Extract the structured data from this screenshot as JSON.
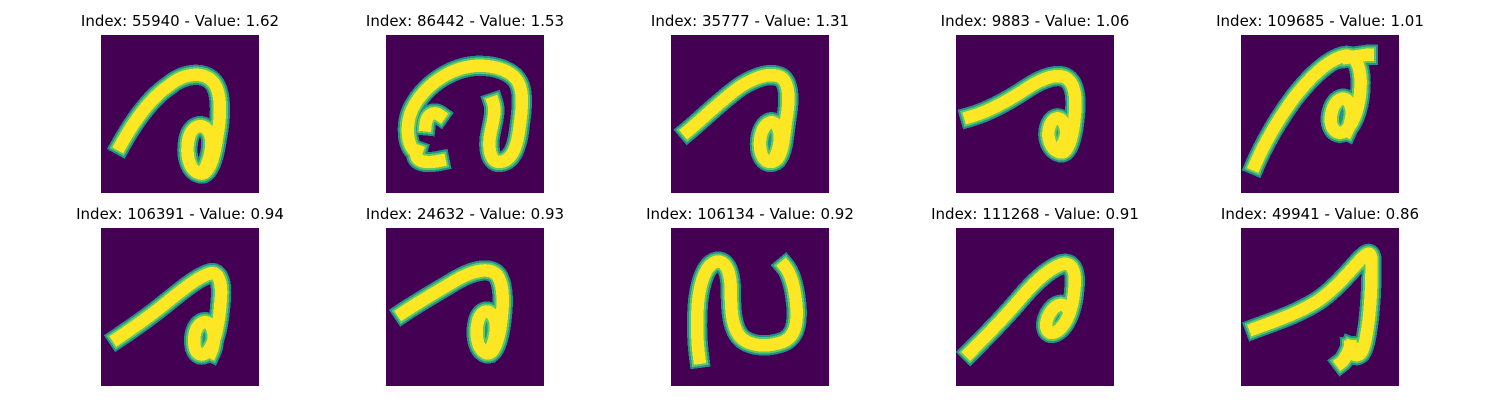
{
  "figure": {
    "background": "#ffffff",
    "image_background": "#440154",
    "colormap": [
      "#440154",
      "#21918c",
      "#5ec962",
      "#fde725"
    ],
    "panels": [
      {
        "title": "Index: 55940 - Value: 1.62",
        "glyph": "curl-loop-wide"
      },
      {
        "title": "Index: 86442 - Value: 1.53",
        "glyph": "arch-with-feet"
      },
      {
        "title": "Index: 35777 - Value: 1.31",
        "glyph": "curl-loop"
      },
      {
        "title": "Index: 9883 - Value: 1.06",
        "glyph": "curl-loop-flat"
      },
      {
        "title": "Index: 109685 - Value: 1.01",
        "glyph": "curl-loop-steep"
      },
      {
        "title": "Index: 106391 - Value: 0.94",
        "glyph": "curl-loop-thin"
      },
      {
        "title": "Index: 24632 - Value: 0.93",
        "glyph": "curl-loop"
      },
      {
        "title": "Index: 106134 - Value: 0.92",
        "glyph": "wave-n"
      },
      {
        "title": "Index: 111268 - Value: 0.91",
        "glyph": "curl-blob"
      },
      {
        "title": "Index: 49941 - Value: 0.86",
        "glyph": "stroke-spike"
      }
    ]
  }
}
